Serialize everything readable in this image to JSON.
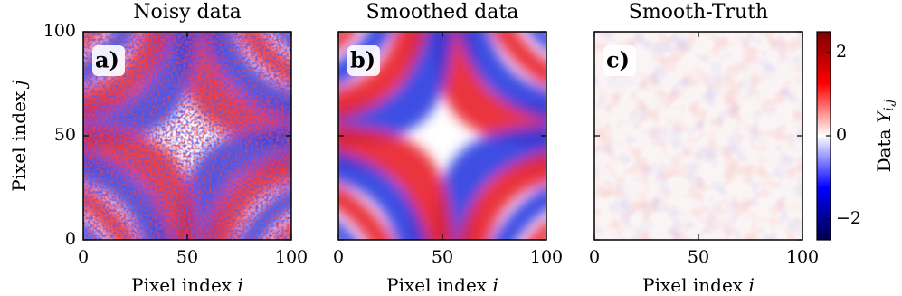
{
  "chart_data": [
    {
      "type": "heatmap",
      "title": "Noisy data",
      "panel_label": "a)",
      "xlabel": "Pixel index",
      "xlabel_symbol": "i",
      "ylabel": "Pixel index",
      "ylabel_symbol": "j",
      "xlim": [
        0,
        100
      ],
      "ylim": [
        0,
        100
      ],
      "xticks": [
        0,
        50,
        100
      ],
      "yticks": [
        0,
        50,
        100
      ],
      "style": "noisy"
    },
    {
      "type": "heatmap",
      "title": "Smoothed data",
      "panel_label": "b)",
      "xlabel": "Pixel index",
      "xlabel_symbol": "i",
      "xlim": [
        0,
        100
      ],
      "ylim": [
        0,
        100
      ],
      "xticks": [
        0,
        50,
        100
      ],
      "yticks": [
        0,
        50,
        100
      ],
      "style": "smooth"
    },
    {
      "type": "heatmap",
      "title": "Smooth-Truth",
      "panel_label": "c)",
      "xlabel": "Pixel index",
      "xlabel_symbol": "i",
      "xlim": [
        0,
        100
      ],
      "ylim": [
        0,
        100
      ],
      "xticks": [
        0,
        50,
        100
      ],
      "yticks": [
        0,
        50,
        100
      ],
      "style": "residual",
      "colorbar": {
        "label": "Data",
        "label_symbol": "Y",
        "label_subscript": "i,j",
        "lim": [
          -2.5,
          2.5
        ],
        "ticks": [
          {
            "value": -2,
            "label": "−2"
          },
          0,
          2
        ]
      }
    }
  ]
}
